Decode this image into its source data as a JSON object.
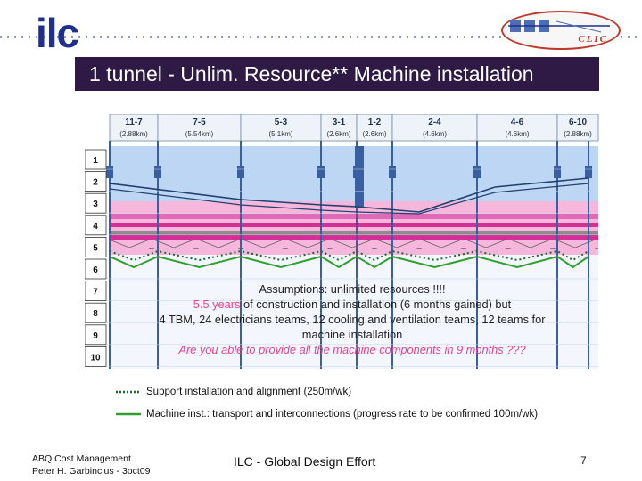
{
  "header": {
    "logo_left": "ilc",
    "logo_right": "CLIC",
    "title": "1 tunnel - Unlim. Resource** Machine installation"
  },
  "diagram": {
    "segments": [
      {
        "name": "11-7",
        "length": "(2.88km)"
      },
      {
        "name": "7-5",
        "length": "(5.54km)"
      },
      {
        "name": "5-3",
        "length": "(5.1km)"
      },
      {
        "name": "3-1",
        "length": "(2.6km)"
      },
      {
        "name": "1-2",
        "length": "(2.6km)"
      },
      {
        "name": "2-4",
        "length": "(4.6km)"
      },
      {
        "name": "4-6",
        "length": "(4.6km)"
      },
      {
        "name": "6-10",
        "length": "(2.88km)"
      }
    ],
    "years": [
      "1",
      "2",
      "3",
      "4",
      "5",
      "6",
      "7",
      "8",
      "9",
      "10"
    ],
    "assumptions": {
      "line1": "Assumptions: unlimited resources !!!!",
      "line2_highlight": "5.5 years",
      "line2_rest": " of construction and installation (6 months gained) but",
      "line3": "4 TBM, 24 electricians teams, 12 cooling and ventilation teams, 12 teams for",
      "line4": "machine installation",
      "line5": "Are you able to provide all the machine components in 9 months ???"
    },
    "legend": [
      {
        "label": "Support installation and alignment (250m/wk)",
        "color": "#1a6a2a",
        "style": "dotted"
      },
      {
        "label": "Machine inst.: transport and interconnections (progress rate to be confirmed 100m/wk)",
        "color": "#2ea02e",
        "style": "solid"
      }
    ],
    "colors": {
      "blue_band": "#bcd6f4",
      "pink_band": "#f7b7dd",
      "magenta": "#d62e97",
      "gray": "#8b8b8b",
      "navy": "#24406e"
    }
  },
  "footer": {
    "left_line1": "ABQ Cost Management",
    "left_line2": "Peter H. Garbincius - 3oct09",
    "center": "ILC - Global Design Effort",
    "page": "7"
  }
}
